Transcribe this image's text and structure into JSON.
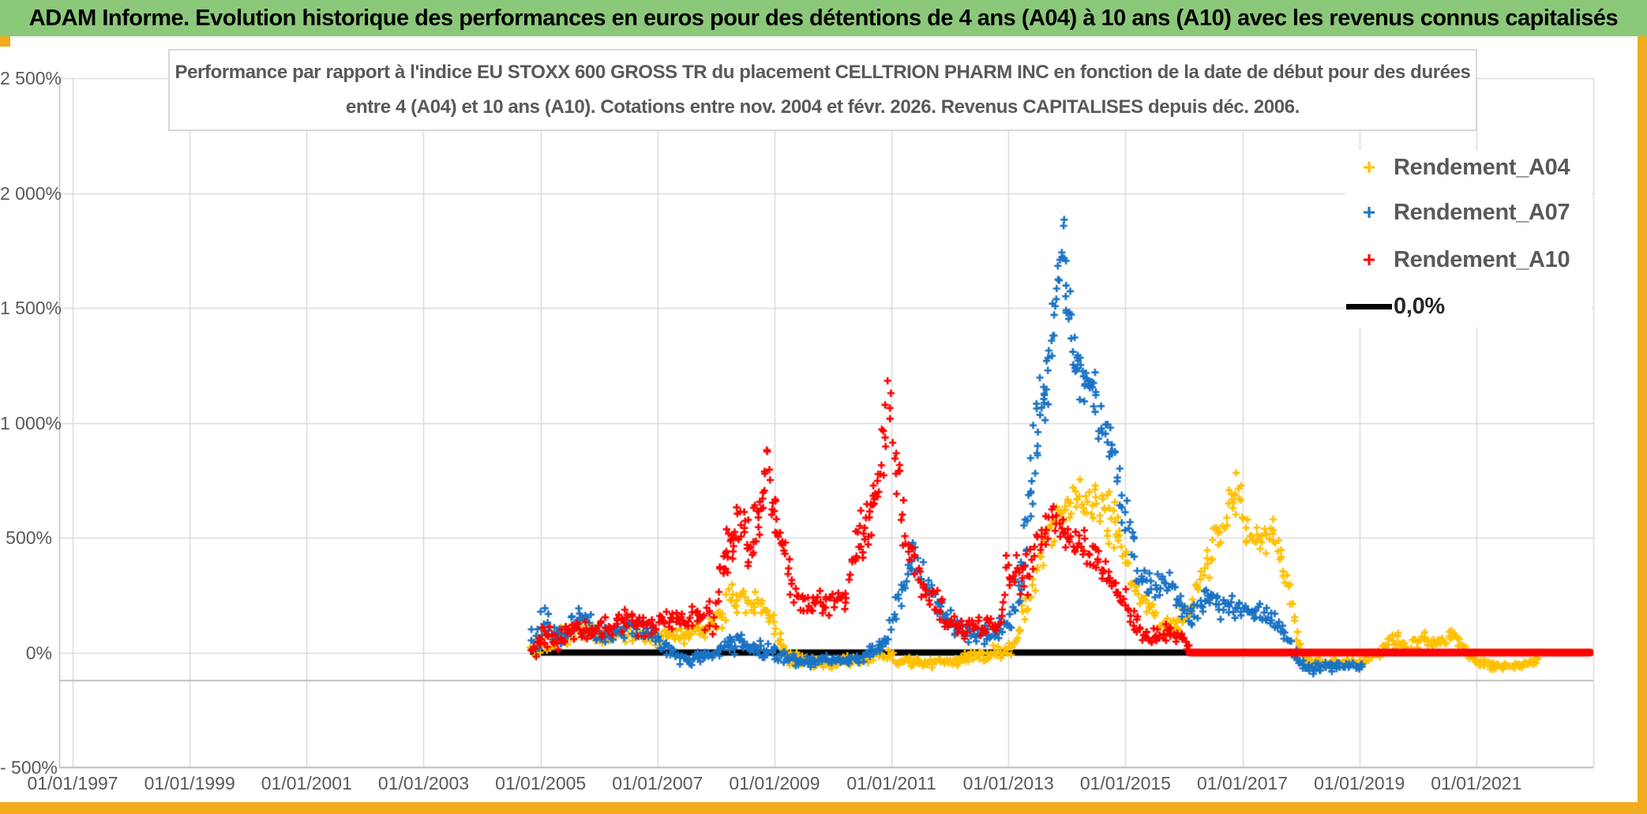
{
  "header": {
    "title": "ADAM Informe. Evolution historique des performances en euros pour des détentions de 4 ans (A04) à 10 ans (A10) avec les revenus connus capitalisés"
  },
  "chart_data": {
    "type": "scatter",
    "subtitle_line1": "Performance par rapport à l'indice EU STOXX 600 GROSS TR  du placement CELLTRION PHARM INC en fonction de la date de début pour des durées",
    "subtitle_line2": "entre 4 (A04) et 10 ans (A10). Cotations entre nov. 2004 et févr. 2026. Revenus CAPITALISES depuis déc. 2006.",
    "x_axis": {
      "tick_labels": [
        "01/01/1997",
        "01/01/1999",
        "01/01/2001",
        "01/01/2003",
        "01/01/2005",
        "01/01/2007",
        "01/01/2009",
        "01/01/2011",
        "01/01/2013",
        "01/01/2015",
        "01/01/2017",
        "01/01/2019",
        "01/01/2021"
      ],
      "tick_years": [
        1997,
        1999,
        2001,
        2003,
        2005,
        2007,
        2009,
        2011,
        2013,
        2015,
        2017,
        2019,
        2021
      ],
      "range_years": [
        1996.77,
        2023.0
      ],
      "grid": true
    },
    "y_axis": {
      "tick_labels": [
        "- 500%",
        "0%",
        "500%",
        "1 000%",
        "1 500%",
        "2 000%",
        "2 500%"
      ],
      "tick_values": [
        -500,
        0,
        500,
        1000,
        1500,
        2000,
        2500
      ],
      "range": [
        -500,
        2500
      ],
      "grid": true,
      "unit": "%"
    },
    "grid_color": "#D9D9D9",
    "axis_color": "#BFBFBF",
    "series": [
      {
        "name": "Rendement_A04",
        "color": "#FFC000",
        "marker": "plus",
        "points": [
          [
            2004.85,
            20,
            70
          ],
          [
            2005.05,
            70,
            80
          ],
          [
            2005.3,
            60,
            50
          ],
          [
            2005.55,
            80,
            50
          ],
          [
            2005.8,
            115,
            55
          ],
          [
            2006.05,
            50,
            40
          ],
          [
            2006.3,
            70,
            45
          ],
          [
            2006.6,
            95,
            50
          ],
          [
            2006.9,
            75,
            45
          ],
          [
            2007.2,
            70,
            40
          ],
          [
            2007.5,
            70,
            40
          ],
          [
            2007.8,
            100,
            60
          ],
          [
            2008.0,
            140,
            70
          ],
          [
            2008.3,
            240,
            100
          ],
          [
            2008.55,
            185,
            60
          ],
          [
            2008.8,
            225,
            65
          ],
          [
            2009.0,
            120,
            70
          ],
          [
            2009.2,
            -20,
            40
          ],
          [
            2009.5,
            -40,
            28
          ],
          [
            2010.0,
            -45,
            25
          ],
          [
            2010.5,
            -30,
            28
          ],
          [
            2010.9,
            -15,
            40
          ],
          [
            2011.2,
            -40,
            25
          ],
          [
            2011.6,
            -45,
            25
          ],
          [
            2012.0,
            -35,
            28
          ],
          [
            2012.4,
            -20,
            30
          ],
          [
            2012.8,
            5,
            40
          ],
          [
            2013.05,
            25,
            50
          ],
          [
            2013.3,
            160,
            90
          ],
          [
            2013.55,
            420,
            130
          ],
          [
            2013.8,
            600,
            110
          ],
          [
            2014.05,
            660,
            110
          ],
          [
            2014.35,
            690,
            115
          ],
          [
            2014.6,
            640,
            100
          ],
          [
            2014.78,
            600,
            280
          ],
          [
            2014.95,
            430,
            100
          ],
          [
            2015.2,
            270,
            80
          ],
          [
            2015.5,
            155,
            60
          ],
          [
            2015.75,
            115,
            50
          ],
          [
            2016.0,
            160,
            60
          ],
          [
            2016.25,
            290,
            80
          ],
          [
            2016.55,
            480,
            110
          ],
          [
            2016.8,
            680,
            120
          ],
          [
            2016.95,
            700,
            100
          ],
          [
            2017.1,
            500,
            80
          ],
          [
            2017.35,
            480,
            75
          ],
          [
            2017.55,
            545,
            80
          ],
          [
            2017.75,
            340,
            90
          ],
          [
            2017.92,
            80,
            60
          ],
          [
            2018.1,
            -40,
            25
          ],
          [
            2018.5,
            -50,
            25
          ],
          [
            2019.0,
            -45,
            25
          ],
          [
            2019.35,
            5,
            30
          ],
          [
            2019.6,
            55,
            40
          ],
          [
            2019.85,
            25,
            30
          ],
          [
            2020.1,
            70,
            40
          ],
          [
            2020.35,
            45,
            35
          ],
          [
            2020.6,
            85,
            45
          ],
          [
            2020.8,
            20,
            30
          ],
          [
            2021.0,
            -45,
            22
          ],
          [
            2021.4,
            -60,
            20
          ],
          [
            2021.8,
            -55,
            20
          ],
          [
            2022.1,
            -35,
            22
          ]
        ]
      },
      {
        "name": "Rendement_A07",
        "color": "#1B73C5",
        "marker": "plus",
        "points": [
          [
            2004.85,
            60,
            95
          ],
          [
            2005.1,
            120,
            95
          ],
          [
            2005.35,
            70,
            55
          ],
          [
            2005.6,
            150,
            75
          ],
          [
            2005.8,
            140,
            70
          ],
          [
            2006.0,
            60,
            45
          ],
          [
            2006.3,
            90,
            50
          ],
          [
            2006.6,
            110,
            55
          ],
          [
            2006.9,
            80,
            50
          ],
          [
            2007.15,
            25,
            35
          ],
          [
            2007.45,
            -30,
            28
          ],
          [
            2007.8,
            -20,
            32
          ],
          [
            2008.1,
            15,
            45
          ],
          [
            2008.45,
            45,
            45
          ],
          [
            2008.75,
            15,
            45
          ],
          [
            2009.1,
            -15,
            35
          ],
          [
            2009.5,
            -40,
            28
          ],
          [
            2010.0,
            -30,
            28
          ],
          [
            2010.5,
            -25,
            30
          ],
          [
            2010.9,
            40,
            55
          ],
          [
            2011.2,
            300,
            120
          ],
          [
            2011.4,
            420,
            100
          ],
          [
            2011.65,
            260,
            80
          ],
          [
            2011.95,
            150,
            65
          ],
          [
            2012.3,
            85,
            55
          ],
          [
            2012.7,
            70,
            50
          ],
          [
            2013.0,
            130,
            70
          ],
          [
            2013.2,
            320,
            140
          ],
          [
            2013.4,
            750,
            220
          ],
          [
            2013.55,
            1060,
            190
          ],
          [
            2013.7,
            1230,
            160
          ],
          [
            2013.85,
            1600,
            200
          ],
          [
            2013.93,
            1820,
            160
          ],
          [
            2014.05,
            1450,
            190
          ],
          [
            2014.2,
            1260,
            160
          ],
          [
            2014.4,
            1150,
            160
          ],
          [
            2014.6,
            1010,
            140
          ],
          [
            2014.8,
            860,
            130
          ],
          [
            2015.0,
            620,
            130
          ],
          [
            2015.2,
            360,
            95
          ],
          [
            2015.45,
            285,
            75
          ],
          [
            2015.7,
            330,
            75
          ],
          [
            2015.95,
            205,
            65
          ],
          [
            2016.15,
            155,
            60
          ],
          [
            2016.4,
            250,
            70
          ],
          [
            2016.65,
            185,
            60
          ],
          [
            2016.9,
            205,
            60
          ],
          [
            2017.2,
            165,
            55
          ],
          [
            2017.5,
            170,
            55
          ],
          [
            2017.75,
            70,
            45
          ],
          [
            2017.95,
            -35,
            30
          ],
          [
            2018.2,
            -70,
            26
          ],
          [
            2018.55,
            -60,
            26
          ],
          [
            2018.8,
            -55,
            26
          ],
          [
            2019.1,
            -60,
            28
          ]
        ]
      },
      {
        "name": "Rendement_A10",
        "color": "#FF0000",
        "marker": "plus",
        "points": [
          [
            2004.85,
            0,
            75
          ],
          [
            2005.05,
            90,
            75
          ],
          [
            2005.3,
            45,
            55
          ],
          [
            2005.6,
            120,
            60
          ],
          [
            2005.9,
            75,
            50
          ],
          [
            2006.2,
            120,
            55
          ],
          [
            2006.5,
            150,
            60
          ],
          [
            2006.8,
            105,
            50
          ],
          [
            2007.1,
            150,
            60
          ],
          [
            2007.4,
            125,
            55
          ],
          [
            2007.7,
            170,
            60
          ],
          [
            2007.95,
            140,
            90
          ],
          [
            2008.12,
            360,
            160
          ],
          [
            2008.28,
            490,
            180
          ],
          [
            2008.42,
            600,
            160
          ],
          [
            2008.56,
            460,
            160
          ],
          [
            2008.72,
            560,
            190
          ],
          [
            2008.88,
            790,
            140
          ],
          [
            2009.0,
            640,
            160
          ],
          [
            2009.15,
            430,
            130
          ],
          [
            2009.35,
            235,
            85
          ],
          [
            2009.6,
            220,
            75
          ],
          [
            2009.9,
            205,
            65
          ],
          [
            2010.2,
            235,
            75
          ],
          [
            2010.45,
            460,
            160
          ],
          [
            2010.65,
            560,
            160
          ],
          [
            2010.85,
            900,
            210
          ],
          [
            2010.95,
            1090,
            130
          ],
          [
            2011.08,
            840,
            160
          ],
          [
            2011.25,
            500,
            130
          ],
          [
            2011.45,
            350,
            110
          ],
          [
            2011.65,
            255,
            85
          ],
          [
            2011.95,
            155,
            65
          ],
          [
            2012.25,
            105,
            55
          ],
          [
            2012.55,
            115,
            55
          ],
          [
            2012.85,
            140,
            65
          ],
          [
            2013.02,
            370,
            160
          ],
          [
            2013.18,
            300,
            110
          ],
          [
            2013.38,
            355,
            110
          ],
          [
            2013.58,
            505,
            120
          ],
          [
            2013.78,
            615,
            105
          ],
          [
            2013.95,
            525,
            105
          ],
          [
            2014.15,
            480,
            95
          ],
          [
            2014.35,
            445,
            95
          ],
          [
            2014.55,
            385,
            85
          ],
          [
            2014.78,
            300,
            75
          ],
          [
            2015.0,
            205,
            75
          ],
          [
            2015.3,
            85,
            45
          ],
          [
            2015.55,
            65,
            40
          ],
          [
            2015.75,
            100,
            45
          ],
          [
            2015.95,
            60,
            32
          ],
          [
            2016.12,
            15,
            22
          ]
        ]
      },
      {
        "name": "0,0%",
        "color": "#000000",
        "marker": "line",
        "line_width": 8,
        "points": [
          [
            2004.87,
            0
          ],
          [
            2016.1,
            0
          ]
        ]
      },
      {
        "name": "zero-extension-A10",
        "color": "#FF0000",
        "marker": "line",
        "line_width": 10,
        "points": [
          [
            2016.1,
            0
          ],
          [
            2022.95,
            0
          ]
        ],
        "in_legend": false
      }
    ]
  },
  "legend": {
    "items": [
      {
        "label": "Rendement_A04",
        "color": "#FFC000",
        "marker": "plus"
      },
      {
        "label": "Rendement_A07",
        "color": "#1B73C5",
        "marker": "plus"
      },
      {
        "label": "Rendement_A10",
        "color": "#FF0000",
        "marker": "plus"
      },
      {
        "label": "0,0%",
        "color": "#000000",
        "marker": "line"
      }
    ]
  },
  "colors": {
    "title_bar": "#8CC87A",
    "accent_yellow": "#F0AC1D",
    "text_gray": "#595959"
  }
}
